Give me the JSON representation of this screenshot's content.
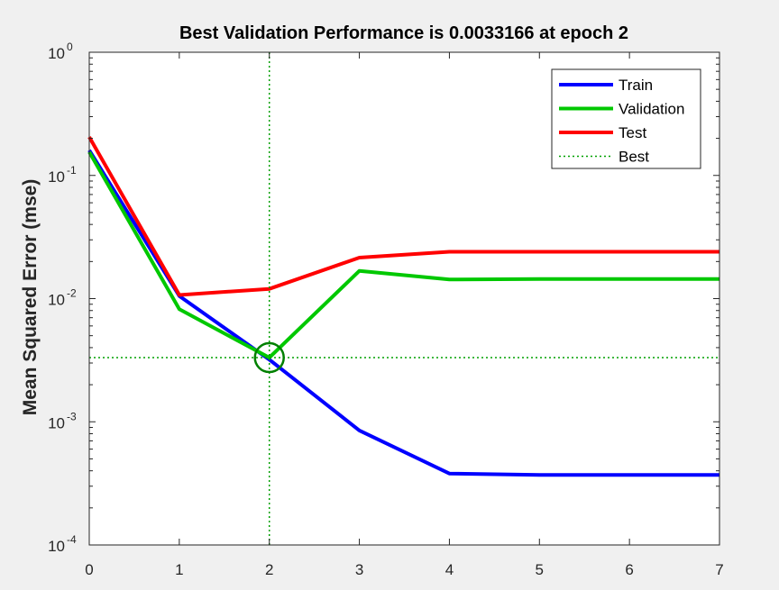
{
  "chart_data": {
    "type": "line",
    "title": "Best Validation Performance is 0.0033166 at epoch 2",
    "xlabel": "",
    "ylabel": "Mean Squared Error  (mse)",
    "x_scale": "linear",
    "y_scale": "log",
    "xlim": [
      0,
      7
    ],
    "ylim": [
      0.0001,
      1
    ],
    "x_ticks": [
      "0",
      "1",
      "2",
      "3",
      "4",
      "5",
      "6",
      "7"
    ],
    "y_ticks": [
      {
        "value": 0.0001,
        "label": "10",
        "exp": "-4"
      },
      {
        "value": 0.001,
        "label": "10",
        "exp": "-3"
      },
      {
        "value": 0.01,
        "label": "10",
        "exp": "-2"
      },
      {
        "value": 0.1,
        "label": "10",
        "exp": "-1"
      },
      {
        "value": 1,
        "label": "10",
        "exp": "0"
      }
    ],
    "grid": false,
    "legend_position": "top-right",
    "x": [
      0,
      1,
      2,
      3,
      4,
      5,
      6,
      7
    ],
    "series": [
      {
        "name": "Train",
        "color": "#0000ff",
        "values": [
          0.16,
          0.0105,
          0.0032,
          0.00085,
          0.00038,
          0.00037,
          0.00037,
          0.00037
        ]
      },
      {
        "name": "Validation",
        "color": "#00c800",
        "values": [
          0.155,
          0.0082,
          0.0033166,
          0.0168,
          0.0143,
          0.0144,
          0.0144,
          0.0144
        ]
      },
      {
        "name": "Test",
        "color": "#ff0000",
        "values": [
          0.205,
          0.0107,
          0.012,
          0.0215,
          0.024,
          0.024,
          0.024,
          0.024
        ]
      }
    ],
    "best": {
      "name": "Best",
      "color": "#00a000",
      "epoch": 2,
      "value": 0.0033166
    }
  }
}
